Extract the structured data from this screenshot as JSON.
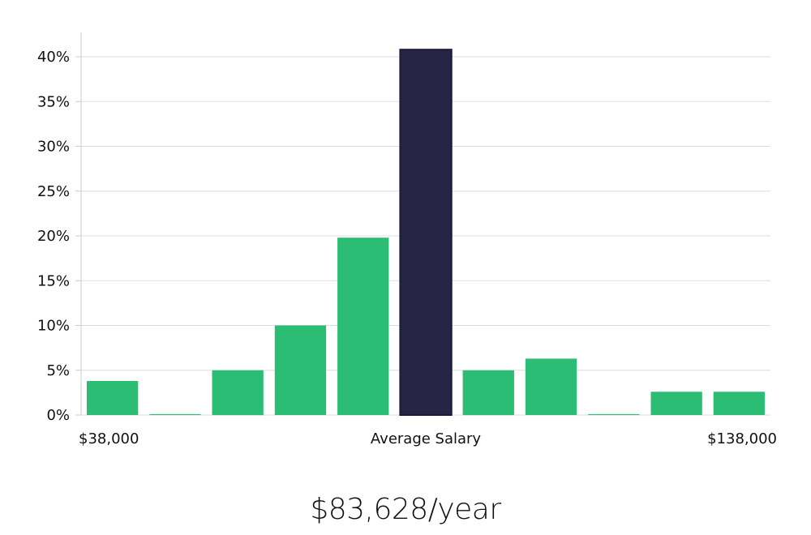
{
  "chart_data": {
    "type": "bar",
    "categories": [
      "1",
      "2",
      "3",
      "4",
      "5",
      "6",
      "7",
      "8",
      "9",
      "10",
      "11"
    ],
    "values": [
      3.8,
      0.1,
      5.0,
      10.0,
      19.8,
      40.8,
      5.0,
      6.3,
      0.1,
      2.6,
      2.6
    ],
    "highlight_index": 5,
    "ylim": [
      0,
      43
    ],
    "yticks": [
      0,
      5,
      10,
      15,
      20,
      25,
      30,
      35,
      40
    ],
    "ytick_format": "%",
    "grid": true,
    "x_labels": {
      "left": "$38,000",
      "center": "Average Salary",
      "right": "$138,000"
    },
    "colors": {
      "bar": "#2bbd74",
      "highlight": "#272445",
      "highlight_stroke": "#1c1a3a",
      "grid": "#dddddd",
      "axis": "#cccccc"
    }
  },
  "summary": {
    "salary_text": "$83,628/year"
  }
}
